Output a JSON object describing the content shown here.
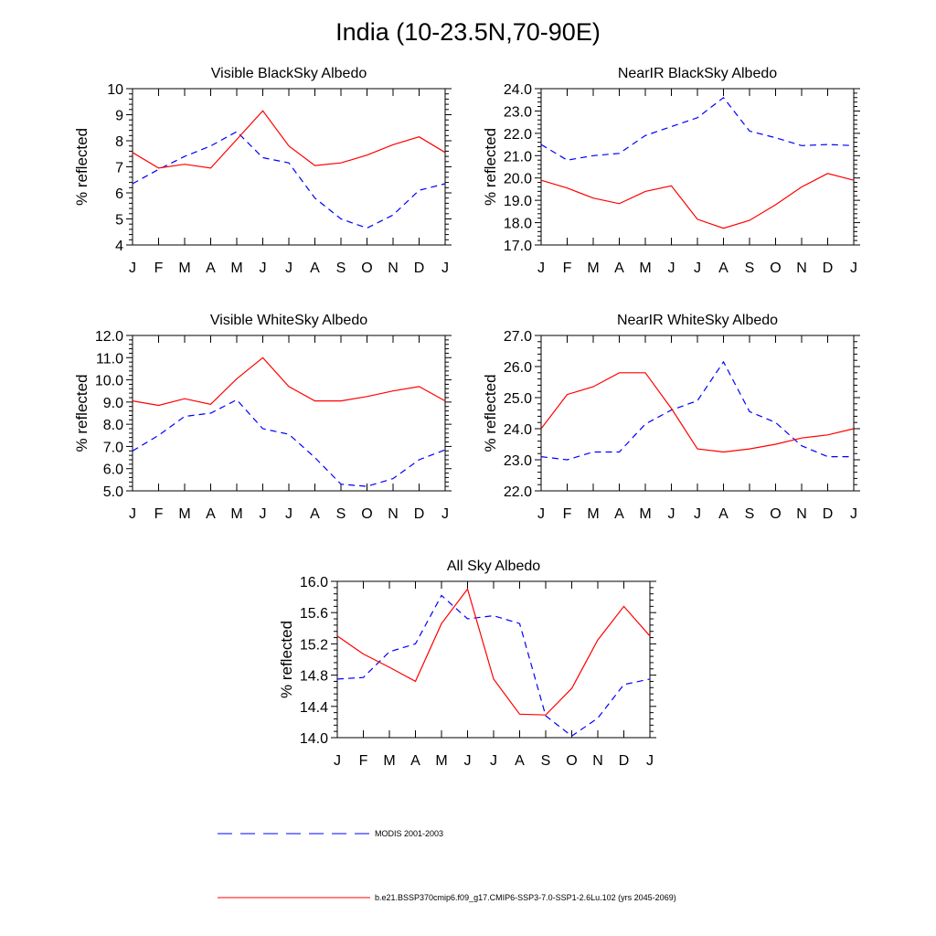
{
  "page": {
    "title": "India (10-23.5N,70-90E)",
    "legend": [
      {
        "label": "MODIS 2001-2003",
        "color": "#0000ff",
        "style": "dashed"
      },
      {
        "label": "b.e21.BSSP370cmip6.f09_g17.CMIP6-SSP3-7.0-SSP1-2.6Lu.102 (yrs 2045-2069)",
        "color": "#ff0000",
        "style": "solid"
      }
    ]
  },
  "chart_data": [
    {
      "type": "line",
      "title": "Visible BlackSky Albedo",
      "ylabel": "% reflected",
      "xlabel": "",
      "categories": [
        "J",
        "F",
        "M",
        "A",
        "M",
        "J",
        "J",
        "A",
        "S",
        "O",
        "N",
        "D",
        "J"
      ],
      "ylim": [
        4,
        10
      ],
      "yticks": [
        "4",
        "5",
        "6",
        "7",
        "8",
        "9",
        "10"
      ],
      "series": [
        {
          "name": "MODIS 2001-2003",
          "color": "#0000ff",
          "dashed": true,
          "values": [
            6.35,
            6.9,
            7.4,
            7.8,
            8.35,
            7.35,
            7.15,
            5.8,
            5.0,
            4.65,
            5.15,
            6.1,
            6.35
          ]
        },
        {
          "name": "b.e21.BSSP370cmip6.f09_g17.CMIP6-SSP3-7.0-SSP1-2.6Lu.102 (yrs 2045-2069)",
          "color": "#ff0000",
          "dashed": false,
          "values": [
            7.55,
            6.95,
            7.1,
            6.95,
            8.05,
            9.15,
            7.8,
            7.05,
            7.15,
            7.45,
            7.85,
            8.15,
            7.55
          ]
        }
      ]
    },
    {
      "type": "line",
      "title": "NearIR BlackSky Albedo",
      "ylabel": "% reflected",
      "xlabel": "",
      "categories": [
        "J",
        "F",
        "M",
        "A",
        "M",
        "J",
        "J",
        "A",
        "S",
        "O",
        "N",
        "D",
        "J"
      ],
      "ylim": [
        17,
        24
      ],
      "yticks": [
        "17.0",
        "18.0",
        "19.0",
        "20.0",
        "21.0",
        "22.0",
        "23.0",
        "24.0"
      ],
      "series": [
        {
          "name": "MODIS 2001-2003",
          "color": "#0000ff",
          "dashed": true,
          "values": [
            21.5,
            20.8,
            21.0,
            21.1,
            21.9,
            22.3,
            22.7,
            23.6,
            22.1,
            21.8,
            21.45,
            21.5,
            21.45
          ]
        },
        {
          "name": "b.e21.BSSP370cmip6.f09_g17.CMIP6-SSP3-7.0-SSP1-2.6Lu.102 (yrs 2045-2069)",
          "color": "#ff0000",
          "dashed": false,
          "values": [
            19.9,
            19.55,
            19.1,
            18.85,
            19.4,
            19.65,
            18.15,
            17.75,
            18.1,
            18.8,
            19.6,
            20.2,
            19.9
          ]
        }
      ]
    },
    {
      "type": "line",
      "title": "Visible WhiteSky Albedo",
      "ylabel": "% reflected",
      "xlabel": "",
      "categories": [
        "J",
        "F",
        "M",
        "A",
        "M",
        "J",
        "J",
        "A",
        "S",
        "O",
        "N",
        "D",
        "J"
      ],
      "ylim": [
        5,
        12
      ],
      "yticks": [
        "5.0",
        "6.0",
        "7.0",
        "8.0",
        "9.0",
        "10.0",
        "11.0",
        "12.0"
      ],
      "series": [
        {
          "name": "MODIS 2001-2003",
          "color": "#0000ff",
          "dashed": true,
          "values": [
            6.8,
            7.5,
            8.35,
            8.5,
            9.1,
            7.8,
            7.55,
            6.5,
            5.3,
            5.2,
            5.55,
            6.4,
            6.85
          ]
        },
        {
          "name": "b.e21.BSSP370cmip6.f09_g17.CMIP6-SSP3-7.0-SSP1-2.6Lu.102 (yrs 2045-2069)",
          "color": "#ff0000",
          "dashed": false,
          "values": [
            9.05,
            8.85,
            9.15,
            8.9,
            10.05,
            11.0,
            9.7,
            9.05,
            9.05,
            9.25,
            9.5,
            9.7,
            9.05
          ]
        }
      ]
    },
    {
      "type": "line",
      "title": "NearIR WhiteSky Albedo",
      "ylabel": "% reflected",
      "xlabel": "",
      "categories": [
        "J",
        "F",
        "M",
        "A",
        "M",
        "J",
        "J",
        "A",
        "S",
        "O",
        "N",
        "D",
        "J"
      ],
      "ylim": [
        22,
        27
      ],
      "yticks": [
        "22.0",
        "23.0",
        "24.0",
        "25.0",
        "26.0",
        "27.0"
      ],
      "series": [
        {
          "name": "MODIS 2001-2003",
          "color": "#0000ff",
          "dashed": true,
          "values": [
            23.1,
            23.0,
            23.25,
            23.25,
            24.15,
            24.6,
            24.9,
            26.15,
            24.55,
            24.2,
            23.45,
            23.1,
            23.1
          ]
        },
        {
          "name": "b.e21.BSSP370cmip6.f09_g17.CMIP6-SSP3-7.0-SSP1-2.6Lu.102 (yrs 2045-2069)",
          "color": "#ff0000",
          "dashed": false,
          "values": [
            24.0,
            25.1,
            25.35,
            25.8,
            25.8,
            24.65,
            23.35,
            23.25,
            23.35,
            23.5,
            23.7,
            23.8,
            24.0
          ]
        }
      ]
    },
    {
      "type": "line",
      "title": "All Sky Albedo",
      "ylabel": "% reflected",
      "xlabel": "",
      "categories": [
        "J",
        "F",
        "M",
        "A",
        "M",
        "J",
        "J",
        "A",
        "S",
        "O",
        "N",
        "D",
        "J"
      ],
      "ylim": [
        14,
        16
      ],
      "yticks": [
        "14.0",
        "14.4",
        "14.8",
        "15.2",
        "15.6",
        "16.0"
      ],
      "series": [
        {
          "name": "MODIS 2001-2003",
          "color": "#0000ff",
          "dashed": true,
          "values": [
            14.75,
            14.77,
            15.1,
            15.2,
            15.82,
            15.52,
            15.56,
            15.46,
            14.28,
            14.02,
            14.25,
            14.68,
            14.75
          ]
        },
        {
          "name": "b.e21.BSSP370cmip6.f09_g17.CMIP6-SSP3-7.0-SSP1-2.6Lu.102 (yrs 2045-2069)",
          "color": "#ff0000",
          "dashed": false,
          "values": [
            15.3,
            15.07,
            14.9,
            14.72,
            15.46,
            15.9,
            14.75,
            14.3,
            14.29,
            14.63,
            15.25,
            15.68,
            15.3
          ]
        }
      ]
    }
  ]
}
